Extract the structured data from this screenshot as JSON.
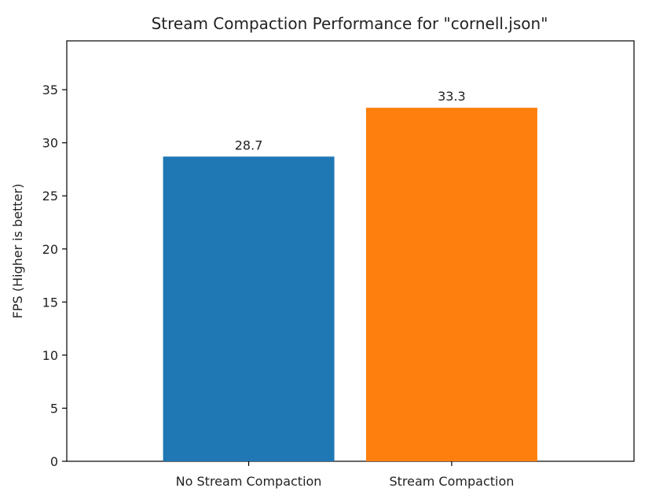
{
  "chart_data": {
    "type": "bar",
    "title": "Stream Compaction Performance for \"cornell.json\"",
    "xlabel": "",
    "ylabel": "FPS (Higher is better)",
    "categories": [
      "No Stream Compaction",
      "Stream Compaction"
    ],
    "values": [
      28.7,
      33.3
    ],
    "value_labels": [
      "28.7",
      "33.3"
    ],
    "colors": [
      "#1f77b4",
      "#ff7f0e"
    ],
    "ylim": [
      0,
      39.6
    ],
    "yticks": [
      0,
      5,
      10,
      15,
      20,
      25,
      30,
      35
    ],
    "grid": false,
    "legend": "none"
  }
}
